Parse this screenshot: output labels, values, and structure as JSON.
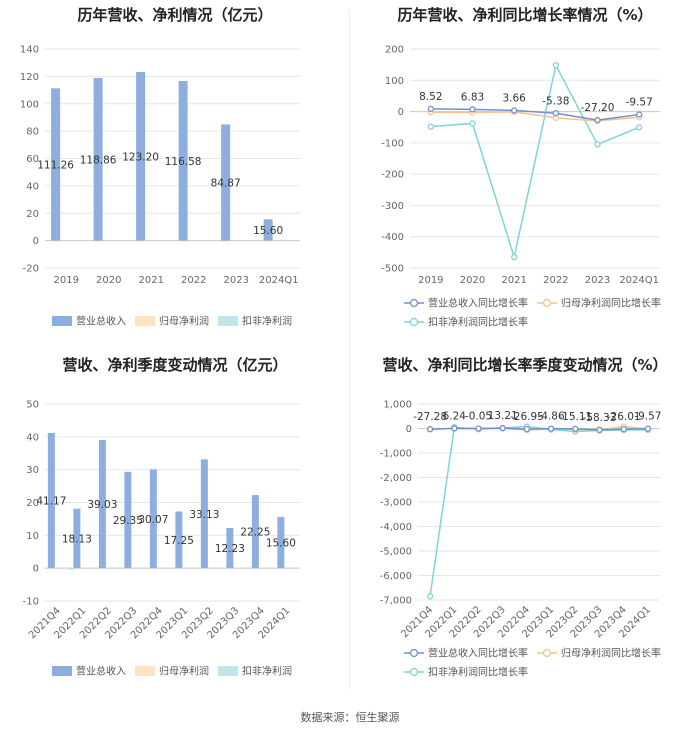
{
  "source_note": "数据来源：恒生聚源",
  "colors": {
    "revenue_bar": "#8eaedf",
    "net_profit_bar": "#fde4c0",
    "deducted_profit_bar": "#bfe7ea",
    "revenue_line": "#6f92cc",
    "net_profit_line": "#f6c28c",
    "deducted_profit_line": "#7fd3d8",
    "grid": "#e6e6e6"
  },
  "chart_data": [
    {
      "type": "bar",
      "title": "历年营收、净利情况（亿元）",
      "categories": [
        "2019",
        "2020",
        "2021",
        "2022",
        "2023",
        "2024Q1"
      ],
      "series": [
        {
          "name": "营业总收入",
          "values": [
            111.26,
            118.86,
            123.2,
            116.58,
            84.87,
            15.6
          ]
        },
        {
          "name": "归母净利润",
          "values": [
            null,
            null,
            null,
            null,
            null,
            null
          ]
        },
        {
          "name": "扣非净利润",
          "values": [
            null,
            null,
            null,
            null,
            null,
            null
          ]
        }
      ],
      "data_labels": [
        "111.26",
        "118.86",
        "123.20",
        "116.58",
        "84.87",
        "15.60"
      ],
      "ylim": [
        -20,
        140
      ],
      "yticks": [
        -20,
        0,
        20,
        40,
        60,
        80,
        100,
        120,
        140
      ],
      "grid": true,
      "legend_position": "bottom"
    },
    {
      "type": "line",
      "title": "历年营收、净利同比增长率情况（%）",
      "categories": [
        "2019",
        "2020",
        "2021",
        "2022",
        "2023",
        "2024Q1"
      ],
      "series": [
        {
          "name": "营业总收入同比增长率",
          "values": [
            8.52,
            6.83,
            3.66,
            -5.38,
            -27.2,
            -9.57
          ]
        },
        {
          "name": "归母净利润同比增长率",
          "values": [
            -2,
            -3,
            -1,
            -20,
            -30,
            -18
          ]
        },
        {
          "name": "扣非净利润同比增长率",
          "values": [
            -48,
            -38,
            -465,
            148,
            -105,
            -50
          ]
        }
      ],
      "data_labels": [
        "8.52",
        "6.83",
        "3.66",
        "-5.38",
        "-27.20",
        "-9.57"
      ],
      "ylim": [
        -500,
        200
      ],
      "yticks": [
        -500,
        -400,
        -300,
        -200,
        -100,
        0,
        100,
        200
      ],
      "grid": true,
      "legend_position": "bottom"
    },
    {
      "type": "bar",
      "title": "营收、净利季度变动情况（亿元）",
      "categories": [
        "2021Q4",
        "2022Q1",
        "2022Q2",
        "2022Q3",
        "2022Q4",
        "2023Q1",
        "2023Q2",
        "2023Q3",
        "2023Q4",
        "2024Q1"
      ],
      "series": [
        {
          "name": "营业总收入",
          "values": [
            41.17,
            18.13,
            39.03,
            29.35,
            30.07,
            17.25,
            33.13,
            12.23,
            22.25,
            15.6
          ]
        },
        {
          "name": "归母净利润",
          "values": [
            null,
            null,
            null,
            null,
            null,
            null,
            null,
            null,
            null,
            null
          ]
        },
        {
          "name": "扣非净利润",
          "values": [
            -0.5,
            null,
            null,
            null,
            null,
            null,
            null,
            null,
            null,
            null
          ]
        }
      ],
      "data_labels": [
        "41.17",
        "18.13",
        "39.03",
        "29.35",
        "30.07",
        "17.25",
        "33.13",
        "12.23",
        "22.25",
        "15.60"
      ],
      "ylim": [
        -10,
        50
      ],
      "yticks": [
        -10,
        0,
        10,
        20,
        30,
        40,
        50
      ],
      "grid": true,
      "legend_position": "bottom"
    },
    {
      "type": "line",
      "title": "营收、净利同比增长率季度变动情况（%）",
      "categories": [
        "2021Q4",
        "2022Q1",
        "2022Q2",
        "2022Q3",
        "2022Q4",
        "2023Q1",
        "2023Q2",
        "2023Q3",
        "2023Q4",
        "2024Q1"
      ],
      "series": [
        {
          "name": "营业总收入同比增长率",
          "values": [
            -27.28,
            6.24,
            -0.05,
            13.21,
            -26.95,
            -4.86,
            -15.11,
            -58.33,
            -26.01,
            -9.57
          ]
        },
        {
          "name": "归母净利润同比增长率",
          "values": [
            -30,
            0,
            -10,
            5,
            -60,
            -20,
            -40,
            -50,
            80,
            -15
          ]
        },
        {
          "name": "扣非净利润同比增长率",
          "values": [
            -6850,
            50,
            -30,
            20,
            80,
            -40,
            -120,
            -80,
            -60,
            -50
          ]
        }
      ],
      "data_labels": [
        "-27.28",
        "6.24",
        "-0.05",
        "13.21",
        "-26.95",
        "-4.86",
        "-15.11",
        "-58.33",
        "-26.01",
        "-9.57"
      ],
      "ylim": [
        -7000,
        1000
      ],
      "yticks": [
        -7000,
        -6000,
        -5000,
        -4000,
        -3000,
        -2000,
        -1000,
        0,
        1000
      ],
      "ytick_labels": [
        "-7,000",
        "-6,000",
        "-5,000",
        "-4,000",
        "-3,000",
        "-2,000",
        "-1,000",
        "0",
        "1,000"
      ],
      "grid": true,
      "legend_position": "bottom"
    }
  ]
}
